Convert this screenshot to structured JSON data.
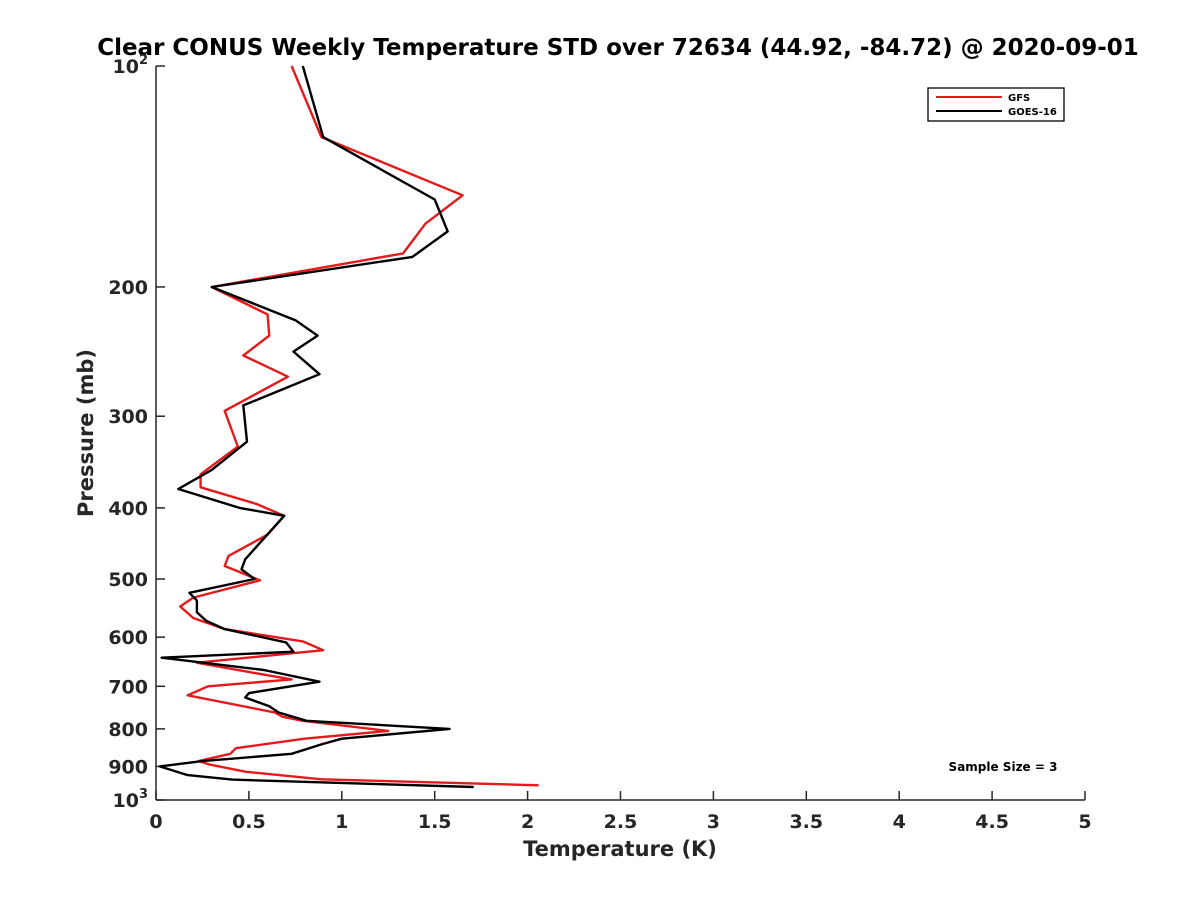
{
  "chart_data": {
    "type": "line",
    "title": "Clear CONUS Weekly Temperature STD over 72634 (44.92, -84.72) @ 2020-09-01",
    "xlabel": "Temperature (K)",
    "ylabel": "Pressure (mb)",
    "xlim": [
      0,
      5
    ],
    "ylim": [
      100,
      1000
    ],
    "y_scale": "log",
    "y_reversed": true,
    "grid": false,
    "x_ticks": [
      "0",
      "0.5",
      "1",
      "1.5",
      "2",
      "2.5",
      "3",
      "3.5",
      "4",
      "4.5",
      "5"
    ],
    "y_ticks": [
      {
        "value": 100,
        "base": "10",
        "exp": "2"
      },
      {
        "value": 200,
        "label": "200"
      },
      {
        "value": 300,
        "label": "300"
      },
      {
        "value": 400,
        "label": "400"
      },
      {
        "value": 500,
        "label": "500"
      },
      {
        "value": 600,
        "label": "600"
      },
      {
        "value": 700,
        "label": "700"
      },
      {
        "value": 800,
        "label": "800"
      },
      {
        "value": 900,
        "label": "900"
      },
      {
        "value": 1000,
        "base": "10",
        "exp": "3"
      }
    ],
    "legend_position": "top-right",
    "annotation": "Sample Size = 3",
    "series": [
      {
        "name": "GFS",
        "color": "#e41a1c",
        "points": [
          [
            0.73,
            100
          ],
          [
            0.89,
            125
          ],
          [
            1.65,
            150
          ],
          [
            1.45,
            164
          ],
          [
            1.33,
            180
          ],
          [
            0.3,
            200
          ],
          [
            0.6,
            218
          ],
          [
            0.61,
            233
          ],
          [
            0.47,
            248
          ],
          [
            0.71,
            265
          ],
          [
            0.37,
            295
          ],
          [
            0.44,
            330
          ],
          [
            0.24,
            360
          ],
          [
            0.24,
            375
          ],
          [
            0.54,
            395
          ],
          [
            0.69,
            410
          ],
          [
            0.6,
            435
          ],
          [
            0.39,
            465
          ],
          [
            0.37,
            480
          ],
          [
            0.56,
            502
          ],
          [
            0.2,
            530
          ],
          [
            0.13,
            545
          ],
          [
            0.2,
            565
          ],
          [
            0.37,
            585
          ],
          [
            0.79,
            608
          ],
          [
            0.9,
            625
          ],
          [
            0.22,
            650
          ],
          [
            0.51,
            670
          ],
          [
            0.73,
            685
          ],
          [
            0.28,
            700
          ],
          [
            0.17,
            720
          ],
          [
            0.64,
            760
          ],
          [
            0.68,
            770
          ],
          [
            0.79,
            780
          ],
          [
            1.25,
            805
          ],
          [
            0.8,
            825
          ],
          [
            0.43,
            850
          ],
          [
            0.4,
            865
          ],
          [
            0.23,
            885
          ],
          [
            0.29,
            895
          ],
          [
            0.48,
            915
          ],
          [
            0.89,
            937
          ],
          [
            2.06,
            955
          ]
        ]
      },
      {
        "name": "GOES-16",
        "color": "#000000",
        "points": [
          [
            0.79,
            100
          ],
          [
            0.9,
            125
          ],
          [
            1.5,
            152
          ],
          [
            1.57,
            168
          ],
          [
            1.38,
            182
          ],
          [
            0.3,
            200
          ],
          [
            0.75,
            222
          ],
          [
            0.87,
            233
          ],
          [
            0.74,
            245
          ],
          [
            0.88,
            263
          ],
          [
            0.47,
            290
          ],
          [
            0.49,
            325
          ],
          [
            0.3,
            355
          ],
          [
            0.12,
            377
          ],
          [
            0.45,
            400
          ],
          [
            0.69,
            410
          ],
          [
            0.48,
            470
          ],
          [
            0.46,
            485
          ],
          [
            0.53,
            500
          ],
          [
            0.18,
            522
          ],
          [
            0.22,
            535
          ],
          [
            0.22,
            555
          ],
          [
            0.27,
            570
          ],
          [
            0.37,
            585
          ],
          [
            0.7,
            610
          ],
          [
            0.74,
            628
          ],
          [
            0.03,
            640
          ],
          [
            0.58,
            665
          ],
          [
            0.88,
            690
          ],
          [
            0.5,
            715
          ],
          [
            0.48,
            725
          ],
          [
            0.61,
            745
          ],
          [
            0.66,
            760
          ],
          [
            0.81,
            780
          ],
          [
            1.58,
            800
          ],
          [
            1.0,
            825
          ],
          [
            0.89,
            840
          ],
          [
            0.73,
            865
          ],
          [
            0.25,
            885
          ],
          [
            0.02,
            900
          ],
          [
            0.17,
            925
          ],
          [
            0.41,
            938
          ],
          [
            1.71,
            960
          ]
        ]
      }
    ]
  }
}
